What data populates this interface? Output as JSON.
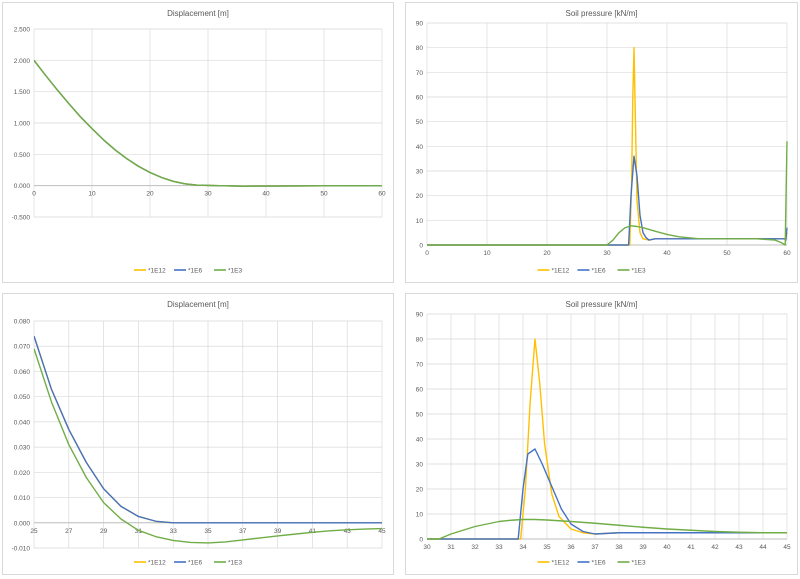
{
  "colors": {
    "E12": "#FFC000",
    "E6": "#4472C4",
    "E3": "#70AD47",
    "grid": "#d9d9d9",
    "axis": "#bfbfbf"
  },
  "legend_labels": [
    "*1E12",
    "*1E6",
    "*1E3"
  ],
  "chart_data": [
    {
      "type": "line",
      "title": "Displacement [m]",
      "xlim": [
        0,
        60
      ],
      "ylim": [
        -0.5,
        2.5
      ],
      "xticks": [
        "0",
        "10",
        "20",
        "30",
        "40",
        "50",
        "60"
      ],
      "yticks": [
        "-0.500",
        "0.000",
        "0.500",
        "1.000",
        "1.500",
        "2.000",
        "2.500"
      ],
      "legend_position": "bottom",
      "grid": true,
      "series": [
        {
          "name": "*1E12",
          "color": "#FFC000",
          "x": [
            0,
            2,
            4,
            6,
            8,
            10,
            12,
            14,
            16,
            18,
            20,
            22,
            24,
            26,
            28,
            30,
            32,
            34,
            36,
            40,
            50,
            60
          ],
          "y": [
            2.0,
            1.76,
            1.53,
            1.31,
            1.1,
            0.91,
            0.73,
            0.57,
            0.43,
            0.31,
            0.21,
            0.13,
            0.07,
            0.03,
            0.01,
            0.003,
            0.0,
            -0.005,
            -0.008,
            -0.006,
            -0.002,
            0.0
          ]
        },
        {
          "name": "*1E6",
          "color": "#4472C4",
          "x": [
            0,
            2,
            4,
            6,
            8,
            10,
            12,
            14,
            16,
            18,
            20,
            22,
            24,
            26,
            28,
            30,
            32,
            34,
            36,
            40,
            50,
            60
          ],
          "y": [
            2.0,
            1.76,
            1.53,
            1.31,
            1.1,
            0.91,
            0.73,
            0.57,
            0.43,
            0.31,
            0.21,
            0.13,
            0.07,
            0.03,
            0.01,
            0.003,
            0.0,
            -0.005,
            -0.008,
            -0.006,
            -0.002,
            0.0
          ]
        },
        {
          "name": "*1E3",
          "color": "#70AD47",
          "x": [
            0,
            2,
            4,
            6,
            8,
            10,
            12,
            14,
            16,
            18,
            20,
            22,
            24,
            26,
            28,
            30,
            32,
            34,
            36,
            40,
            50,
            60
          ],
          "y": [
            2.0,
            1.76,
            1.53,
            1.31,
            1.1,
            0.91,
            0.73,
            0.57,
            0.43,
            0.31,
            0.21,
            0.13,
            0.07,
            0.03,
            0.01,
            0.003,
            0.0,
            -0.005,
            -0.008,
            -0.006,
            -0.002,
            0.0
          ]
        }
      ]
    },
    {
      "type": "line",
      "title": "Soil pressure [kN/m]",
      "xlim": [
        0,
        60
      ],
      "ylim": [
        0,
        90
      ],
      "xticks": [
        "0",
        "10",
        "20",
        "30",
        "40",
        "50",
        "60"
      ],
      "yticks": [
        "0",
        "10",
        "20",
        "30",
        "40",
        "50",
        "60",
        "70",
        "80",
        "90"
      ],
      "legend_position": "bottom",
      "grid": true,
      "series": [
        {
          "name": "*1E12",
          "color": "#FFC000",
          "x": [
            0,
            33.8,
            34.1,
            34.3,
            34.5,
            34.7,
            35,
            35.5,
            36,
            37,
            38,
            40,
            45,
            50,
            55,
            59,
            59.6,
            59.8,
            60
          ],
          "y": [
            0,
            0,
            25,
            60,
            80,
            55,
            18,
            5,
            2.5,
            2,
            2.5,
            2.5,
            2.5,
            2.5,
            2.5,
            2.5,
            2.5,
            2,
            5
          ]
        },
        {
          "name": "*1E6",
          "color": "#4472C4",
          "x": [
            0,
            33.6,
            34,
            34.5,
            35,
            35.5,
            36,
            36.5,
            37,
            38,
            40,
            45,
            50,
            55,
            59,
            59.6,
            59.8,
            60
          ],
          "y": [
            0,
            0,
            20,
            36,
            28,
            12,
            5,
            3,
            2,
            2.5,
            2.5,
            2.5,
            2.5,
            2.5,
            2.5,
            2.5,
            2,
            7
          ]
        },
        {
          "name": "*1E3",
          "color": "#70AD47",
          "x": [
            0,
            30,
            31,
            32,
            33,
            34,
            35,
            36,
            37,
            38,
            40,
            42,
            45,
            50,
            55,
            58,
            59,
            59.7,
            60
          ],
          "y": [
            0,
            0,
            2,
            5,
            7,
            7.8,
            7.5,
            7,
            6.3,
            5.6,
            4.3,
            3.3,
            2.6,
            2.5,
            2.5,
            2,
            1,
            0,
            42
          ]
        }
      ]
    },
    {
      "type": "line",
      "title": "Displacement [m]",
      "xlim": [
        25,
        45
      ],
      "ylim": [
        -0.01,
        0.08
      ],
      "xticks": [
        "25",
        "27",
        "29",
        "31",
        "33",
        "35",
        "37",
        "39",
        "41",
        "43",
        "45"
      ],
      "yticks": [
        "-0.010",
        "0.000",
        "0.010",
        "0.020",
        "0.030",
        "0.040",
        "0.050",
        "0.060",
        "0.070",
        "0.080"
      ],
      "legend_position": "bottom",
      "grid": true,
      "series": [
        {
          "name": "*1E12",
          "color": "#FFC000",
          "x": [
            25,
            26,
            27,
            28,
            29,
            30,
            31,
            32,
            33,
            34,
            35,
            37,
            39,
            41,
            43,
            45
          ],
          "y": [
            0.074,
            0.053,
            0.037,
            0.024,
            0.0135,
            0.0065,
            0.0025,
            0.0006,
            0,
            0,
            0,
            0,
            0,
            0,
            0,
            0
          ]
        },
        {
          "name": "*1E6",
          "color": "#4472C4",
          "x": [
            25,
            26,
            27,
            28,
            29,
            30,
            31,
            32,
            33,
            34,
            35,
            37,
            39,
            41,
            43,
            45
          ],
          "y": [
            0.074,
            0.053,
            0.037,
            0.024,
            0.0135,
            0.0065,
            0.0025,
            0.0006,
            0,
            0,
            0,
            0,
            0,
            0,
            0,
            0
          ]
        },
        {
          "name": "*1E3",
          "color": "#70AD47",
          "x": [
            25,
            26,
            27,
            28,
            29,
            30,
            31,
            32,
            33,
            34,
            35,
            36,
            37,
            38,
            39,
            40,
            41,
            42,
            43,
            44,
            45
          ],
          "y": [
            0.069,
            0.048,
            0.031,
            0.018,
            0.008,
            0.0015,
            -0.003,
            -0.0055,
            -0.007,
            -0.0078,
            -0.008,
            -0.0076,
            -0.0068,
            -0.006,
            -0.0052,
            -0.0045,
            -0.0038,
            -0.0032,
            -0.0028,
            -0.0025,
            -0.0023
          ]
        }
      ]
    },
    {
      "type": "line",
      "title": "Soil pressure [kN/m]",
      "xlim": [
        30,
        45
      ],
      "ylim": [
        0,
        90
      ],
      "xticks": [
        "30",
        "31",
        "32",
        "33",
        "34",
        "35",
        "36",
        "37",
        "38",
        "39",
        "40",
        "41",
        "42",
        "43",
        "44",
        "45"
      ],
      "yticks": [
        "0",
        "10",
        "20",
        "30",
        "40",
        "50",
        "60",
        "70",
        "80",
        "90"
      ],
      "legend_position": "bottom",
      "grid": true,
      "series": [
        {
          "name": "*1E12",
          "color": "#FFC000",
          "x": [
            30,
            33.9,
            34.1,
            34.3,
            34.5,
            34.7,
            34.9,
            35.2,
            35.5,
            36,
            36.5,
            37,
            38,
            40,
            45
          ],
          "y": [
            0,
            0,
            20,
            55,
            80,
            62,
            38,
            18,
            9,
            4,
            2.5,
            2,
            2.5,
            2.5,
            2.5
          ]
        },
        {
          "name": "*1E6",
          "color": "#4472C4",
          "x": [
            30,
            33.8,
            34,
            34.2,
            34.5,
            34.8,
            35.2,
            35.6,
            36,
            36.5,
            37,
            38,
            40,
            45
          ],
          "y": [
            0,
            0,
            20,
            34,
            36,
            30,
            21,
            12,
            6,
            3,
            2,
            2.5,
            2.5,
            2.5
          ]
        },
        {
          "name": "*1E3",
          "color": "#70AD47",
          "x": [
            30,
            30.5,
            31,
            31.5,
            32,
            32.5,
            33,
            33.5,
            34,
            34.5,
            35,
            36,
            37,
            38,
            39,
            40,
            41,
            42,
            43,
            44,
            45
          ],
          "y": [
            0,
            0,
            2,
            3.5,
            5,
            6,
            7,
            7.5,
            7.8,
            7.8,
            7.6,
            7,
            6.3,
            5.5,
            4.7,
            4,
            3.5,
            3,
            2.7,
            2.5,
            2.5
          ]
        }
      ]
    }
  ]
}
